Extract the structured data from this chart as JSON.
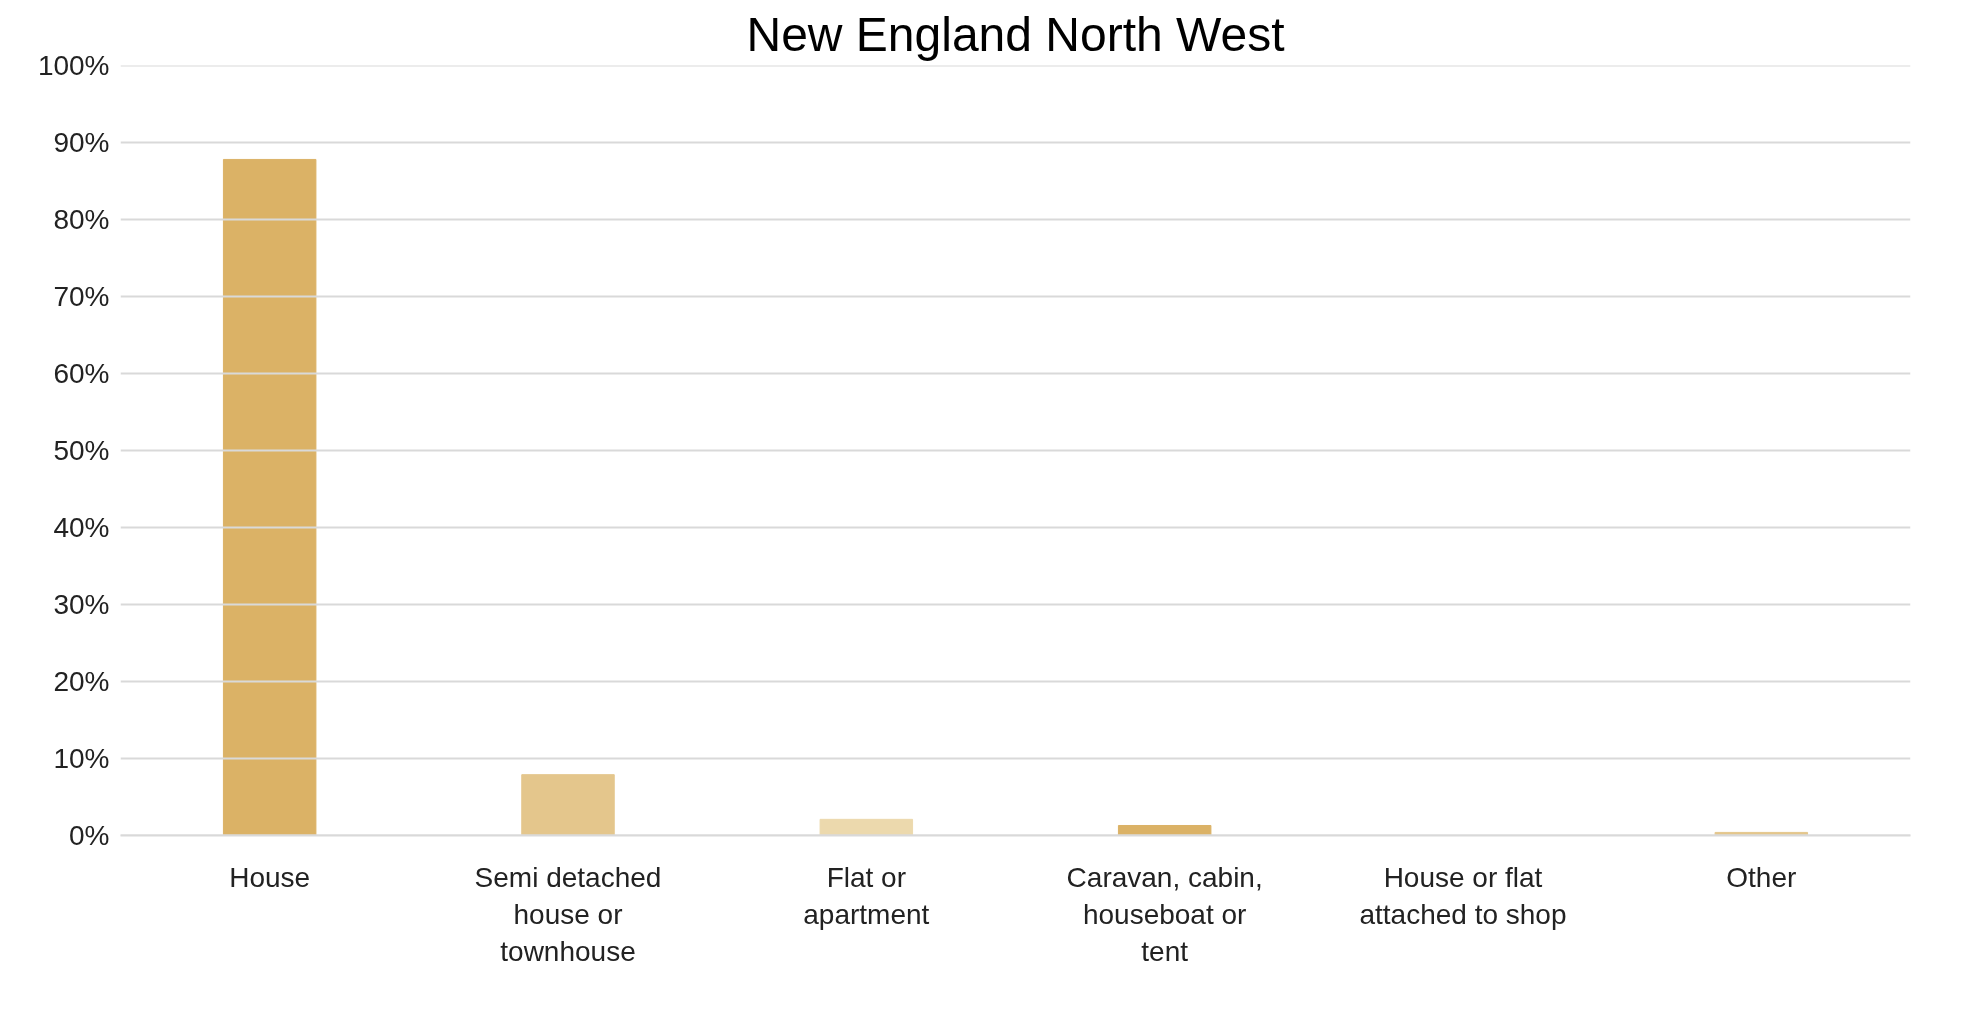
{
  "chart_data": {
    "type": "bar",
    "title": "New England North West",
    "categories": [
      "House",
      "Semi detached\nhouse or\ntownhouse",
      "Flat or\napartment",
      "Caravan, cabin,\nhouseboat or\ntent",
      "House or flat\nattached to shop",
      "Other"
    ],
    "values": [
      87.8,
      7.9,
      2.1,
      1.3,
      0,
      0.4
    ],
    "colors": [
      "#dbb266",
      "#e4c68c",
      "#ecd9ad",
      "#dbb266",
      "#e4c68c",
      "#e4c68c"
    ],
    "ylim": [
      0,
      100
    ],
    "yticks": [
      {
        "value": 0,
        "label": "0%"
      },
      {
        "value": 10,
        "label": "10%"
      },
      {
        "value": 20,
        "label": "20%"
      },
      {
        "value": 30,
        "label": "30%"
      },
      {
        "value": 40,
        "label": "40%"
      },
      {
        "value": 50,
        "label": "50%"
      },
      {
        "value": 60,
        "label": "60%"
      },
      {
        "value": 70,
        "label": "70%"
      },
      {
        "value": 80,
        "label": "80%"
      },
      {
        "value": 90,
        "label": "90%"
      },
      {
        "value": 100,
        "label": "100%"
      }
    ],
    "grid": "y"
  }
}
